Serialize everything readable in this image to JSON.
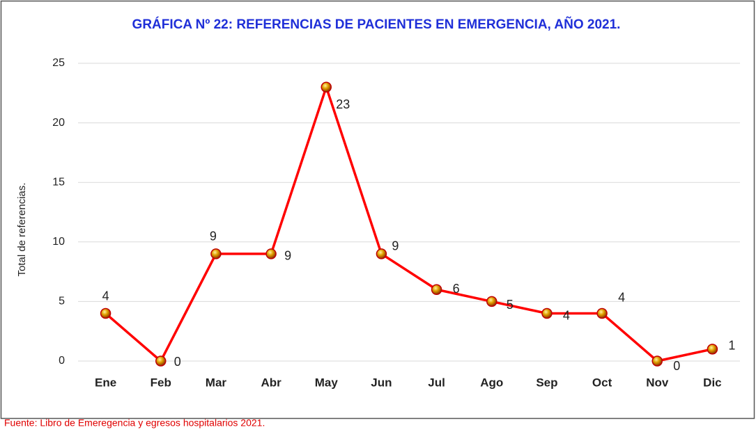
{
  "chart_data": {
    "type": "line",
    "title": "GRÁFICA  Nº 22: REFERENCIAS DE PACIENTES EN EMERGENCIA, AÑO 2021.",
    "y_label": "Total de referencias.",
    "source": "Fuente: Libro de Emeregencia y egresos hospitalarios 2021.",
    "categories": [
      "Ene",
      "Feb",
      "Mar",
      "Abr",
      "May",
      "Jun",
      "Jul",
      "Ago",
      "Sep",
      "Oct",
      "Nov",
      "Dic"
    ],
    "values": [
      4,
      0,
      9,
      9,
      23,
      9,
      6,
      5,
      4,
      4,
      0,
      1
    ],
    "color": "#ff0000",
    "ylim": [
      0,
      25
    ],
    "yticks": [
      0,
      5,
      10,
      15,
      20,
      25
    ],
    "grid": true
  }
}
